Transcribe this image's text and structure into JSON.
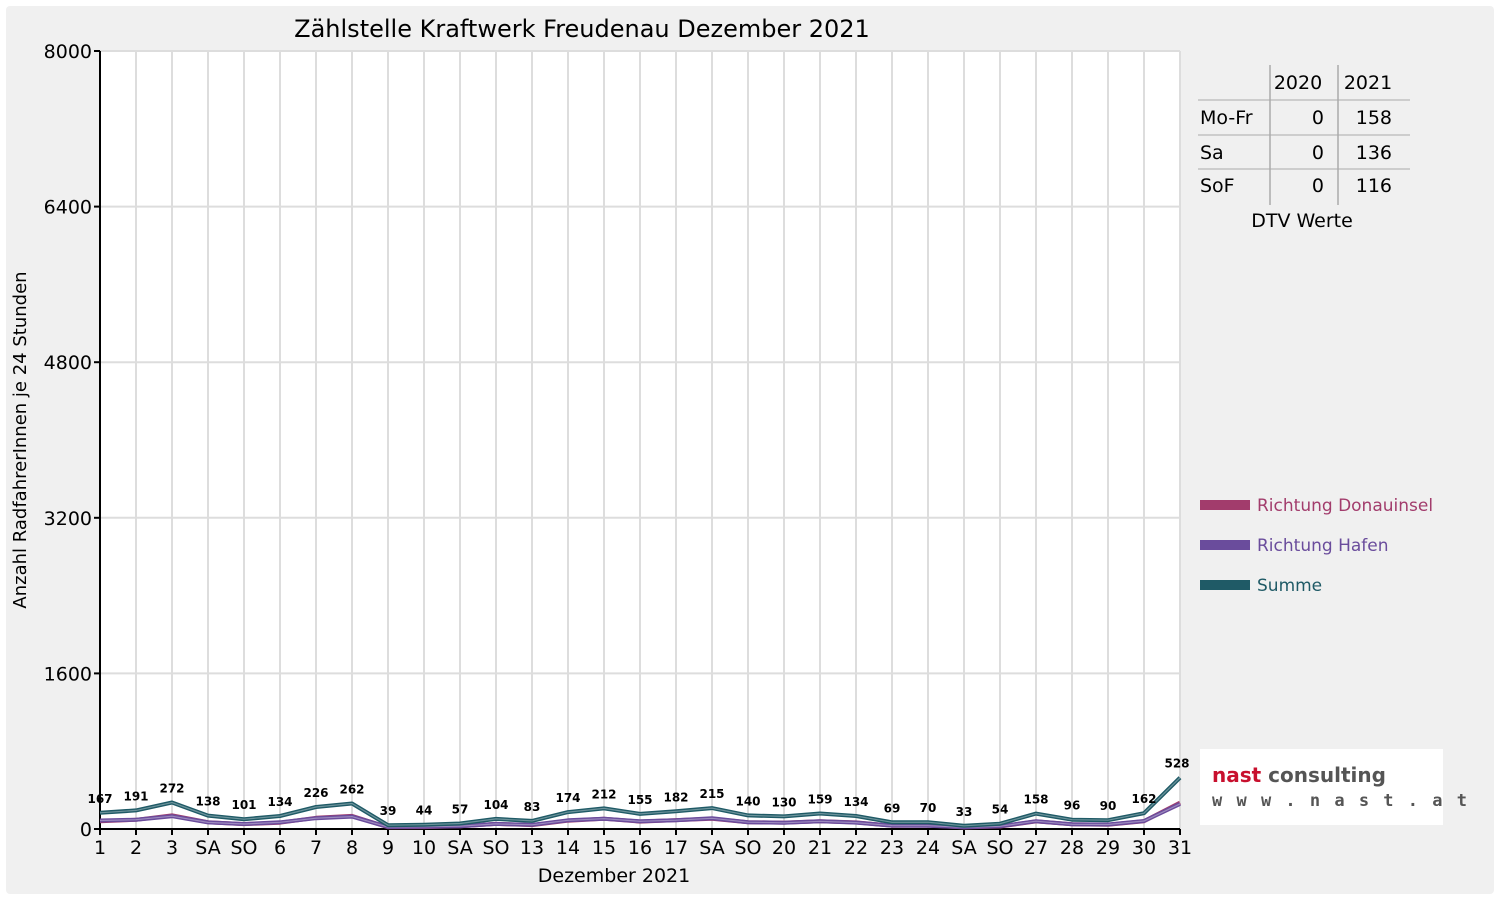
{
  "chart_data": {
    "type": "line",
    "title": "Zählstelle Kraftwerk Freudenau Dezember 2021",
    "xlabel": "Dezember 2021",
    "ylabel": "Anzahl RadfahrerInnen je 24 Stunden",
    "ylim": [
      0,
      8000
    ],
    "yticks": [
      0,
      1600,
      3200,
      4800,
      6400,
      8000
    ],
    "grid": true,
    "legend_position": "right",
    "categories": [
      "1",
      "2",
      "3",
      "SA",
      "SO",
      "6",
      "7",
      "8",
      "9",
      "10",
      "SA",
      "SO",
      "13",
      "14",
      "15",
      "16",
      "17",
      "SA",
      "SO",
      "20",
      "21",
      "22",
      "23",
      "24",
      "SA",
      "SO",
      "27",
      "28",
      "29",
      "30",
      "31"
    ],
    "highlighted_categories": [
      4,
      7,
      11,
      18,
      25
    ],
    "series": [
      {
        "name": "Richtung Donauinsel",
        "color": "#a23c6c",
        "values": [
          80,
          95,
          140,
          70,
          50,
          65,
          115,
          135,
          18,
          20,
          28,
          52,
          40,
          85,
          106,
          76,
          92,
          105,
          70,
          66,
          80,
          68,
          34,
          36,
          16,
          26,
          78,
          48,
          44,
          80,
          270
        ]
      },
      {
        "name": "Richtung Hafen",
        "color": "#6a4c9c",
        "values": [
          87,
          96,
          132,
          68,
          51,
          69,
          111,
          127,
          21,
          24,
          29,
          52,
          43,
          89,
          106,
          79,
          90,
          110,
          70,
          64,
          79,
          66,
          35,
          34,
          17,
          28,
          80,
          48,
          46,
          82,
          258
        ]
      },
      {
        "name": "Summe",
        "color": "#1f5a66",
        "values": [
          167,
          191,
          272,
          138,
          101,
          134,
          226,
          262,
          39,
          44,
          57,
          104,
          83,
          174,
          212,
          155,
          182,
          215,
          140,
          130,
          159,
          134,
          69,
          70,
          33,
          54,
          158,
          96,
          90,
          162,
          528
        ]
      }
    ],
    "data_labels": [
      "167",
      "191",
      "272",
      "138",
      "101",
      "134",
      "226",
      "262",
      "39",
      "44",
      "57",
      "104",
      "83",
      "174",
      "212",
      "155",
      "182",
      "215",
      "140",
      "130",
      "159",
      "134",
      "69",
      "70",
      "33",
      "54",
      "158",
      "96",
      "90",
      "162",
      "528"
    ]
  },
  "dtv_table": {
    "headers": [
      "2020",
      "2021"
    ],
    "rows": [
      {
        "label": "Mo-Fr",
        "v2020": "0",
        "v2021": "158"
      },
      {
        "label": "Sa",
        "v2020": "0",
        "v2021": "136"
      },
      {
        "label": "SoF",
        "v2020": "0",
        "v2021": "116"
      }
    ],
    "caption": "DTV Werte"
  },
  "logo": {
    "part1": "nast",
    "part2": " consulting",
    "url": "w w w . n a s t . a t"
  }
}
